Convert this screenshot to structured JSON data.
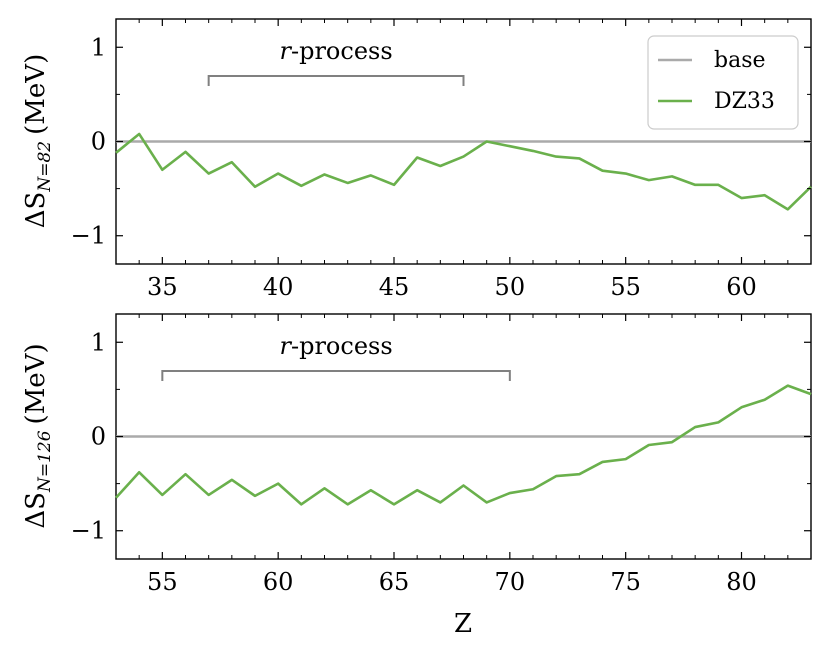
{
  "chart_data": [
    {
      "type": "line",
      "ylabel": "ΔS_{N=82} (MeV)",
      "ylabel_main": "ΔS",
      "ylabel_sub": "N=82",
      "ylabel_unit": "(MeV)",
      "xlabel": "",
      "xlim": [
        33,
        63
      ],
      "ylim": [
        -1.3,
        1.3
      ],
      "xticks": [
        35,
        40,
        45,
        50,
        55,
        60
      ],
      "yticks": [
        -1,
        0,
        1
      ],
      "legend": {
        "position": "top-right",
        "entries": [
          "base",
          "DZ33"
        ]
      },
      "annotation": {
        "text_italic": "r",
        "text_rest": "-process",
        "x_start": 37,
        "x_end": 48
      },
      "series": [
        {
          "name": "base",
          "color": "#aaaaaa",
          "x": [
            33,
            63
          ],
          "y": [
            0,
            0
          ]
        },
        {
          "name": "DZ33",
          "color": "#6ab04c",
          "x": [
            33,
            34,
            35,
            36,
            37,
            38,
            39,
            40,
            41,
            42,
            43,
            44,
            45,
            46,
            47,
            48,
            49,
            50,
            51,
            52,
            53,
            54,
            55,
            56,
            57,
            58,
            59,
            60,
            61,
            62,
            63
          ],
          "y": [
            -0.12,
            0.08,
            -0.3,
            -0.11,
            -0.34,
            -0.22,
            -0.48,
            -0.34,
            -0.47,
            -0.35,
            -0.44,
            -0.36,
            -0.46,
            -0.17,
            -0.26,
            -0.16,
            0.0,
            -0.05,
            -0.1,
            -0.16,
            -0.18,
            -0.31,
            -0.34,
            -0.41,
            -0.37,
            -0.46,
            -0.46,
            -0.6,
            -0.57,
            -0.72,
            -0.48
          ]
        }
      ]
    },
    {
      "type": "line",
      "ylabel": "ΔS_{N=126} (MeV)",
      "ylabel_main": "ΔS",
      "ylabel_sub": "N=126",
      "ylabel_unit": "(MeV)",
      "xlabel": "Z",
      "xlim": [
        53,
        83
      ],
      "ylim": [
        -1.3,
        1.3
      ],
      "xticks": [
        55,
        60,
        65,
        70,
        75,
        80
      ],
      "yticks": [
        -1,
        0,
        1
      ],
      "annotation": {
        "text_italic": "r",
        "text_rest": "-process",
        "x_start": 55,
        "x_end": 70
      },
      "series": [
        {
          "name": "base",
          "color": "#aaaaaa",
          "x": [
            53,
            83
          ],
          "y": [
            0,
            0
          ]
        },
        {
          "name": "DZ33",
          "color": "#6ab04c",
          "x": [
            53,
            54,
            55,
            56,
            57,
            58,
            59,
            60,
            61,
            62,
            63,
            64,
            65,
            66,
            67,
            68,
            69,
            70,
            71,
            72,
            73,
            74,
            75,
            76,
            77,
            78,
            79,
            80,
            81,
            82,
            83
          ],
          "y": [
            -0.65,
            -0.38,
            -0.62,
            -0.4,
            -0.62,
            -0.46,
            -0.63,
            -0.5,
            -0.72,
            -0.55,
            -0.72,
            -0.57,
            -0.72,
            -0.57,
            -0.7,
            -0.52,
            -0.7,
            -0.6,
            -0.56,
            -0.42,
            -0.4,
            -0.27,
            -0.24,
            -0.09,
            -0.06,
            0.1,
            0.15,
            0.31,
            0.39,
            0.54,
            0.45
          ]
        }
      ]
    }
  ]
}
